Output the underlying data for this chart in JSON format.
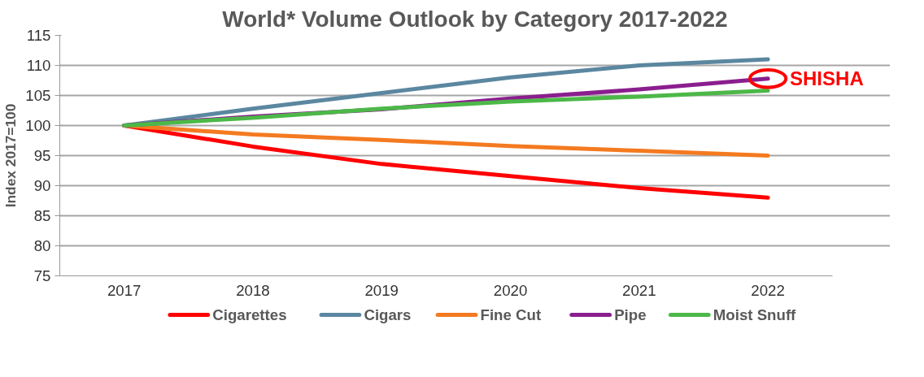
{
  "chart_data": {
    "type": "line",
    "title": "World* Volume Outlook by Category 2017-2022",
    "ylabel": "Index 2017=100",
    "categories": [
      "2017",
      "2018",
      "2019",
      "2020",
      "2021",
      "2022"
    ],
    "series": [
      {
        "name": "Cigarettes",
        "color": "#ff0000",
        "values": [
          100,
          96.5,
          93.6,
          91.6,
          89.6,
          88
        ]
      },
      {
        "name": "Cigars",
        "color": "#5b87a0",
        "values": [
          100,
          102.8,
          105.4,
          108,
          110,
          111
        ]
      },
      {
        "name": "Fine Cut",
        "color": "#f47a20",
        "values": [
          100,
          98.5,
          97.6,
          96.6,
          95.8,
          95
        ]
      },
      {
        "name": "Pipe",
        "color": "#8b1e8e",
        "values": [
          100,
          101.5,
          102.7,
          104.5,
          106,
          107.8
        ]
      },
      {
        "name": "Moist Snuff",
        "color": "#4cb848",
        "values": [
          100,
          101.3,
          102.8,
          104,
          104.8,
          105.8
        ]
      }
    ],
    "annotations": [
      {
        "text": "SHISHA",
        "x": "2022",
        "y": 107.8
      }
    ],
    "ylim": [
      75,
      115
    ],
    "yticks": [
      75,
      80,
      85,
      90,
      95,
      100,
      105,
      110,
      115
    ],
    "grid": "y",
    "legend": "bottom",
    "marker": "none",
    "line_style": "solid"
  }
}
